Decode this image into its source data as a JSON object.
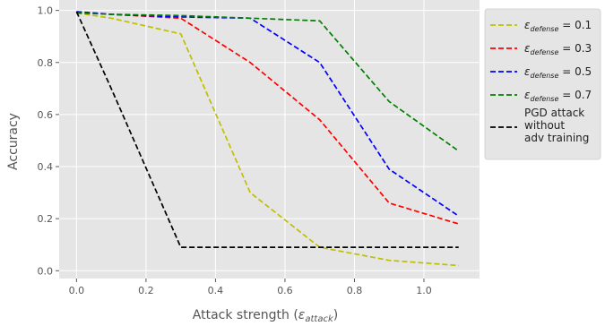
{
  "chart_data": {
    "type": "line",
    "title": "",
    "xlabel": "Attack strength (",
    "xlabel_symbol": "ε",
    "xlabel_subscript": "attack",
    "xlabel_suffix": ")",
    "ylabel": "Accuracy",
    "xlim": [
      -0.05,
      1.16
    ],
    "ylim": [
      -0.03,
      1.04
    ],
    "x_ticks": [
      0.0,
      0.2,
      0.4,
      0.6,
      0.8,
      1.0
    ],
    "x_tick_labels": [
      "0.0",
      "0.2",
      "0.4",
      "0.6",
      "0.8",
      "1.0"
    ],
    "y_ticks": [
      0.0,
      0.2,
      0.4,
      0.6,
      0.8,
      1.0
    ],
    "y_tick_labels": [
      "0.0",
      "0.2",
      "0.4",
      "0.6",
      "0.8",
      "1.0"
    ],
    "grid": true,
    "legend_position": "outside-right",
    "background_color": "#e5e5e5",
    "grid_color": "#ffffff",
    "x": [
      0.0,
      0.1,
      0.3,
      0.5,
      0.7,
      0.9,
      1.1
    ],
    "series": [
      {
        "legend_symbol": "ε",
        "legend_subscript": "defense",
        "legend_suffix": " = 0.1",
        "color": "#bfbf00",
        "values": [
          0.99,
          0.97,
          0.91,
          0.3,
          0.09,
          0.04,
          0.02
        ]
      },
      {
        "legend_symbol": "ε",
        "legend_subscript": "defense",
        "legend_suffix": " = 0.3",
        "color": "#ff0000",
        "values": [
          0.995,
          0.985,
          0.97,
          0.8,
          0.58,
          0.26,
          0.18
        ]
      },
      {
        "legend_symbol": "ε",
        "legend_subscript": "defense",
        "legend_suffix": " = 0.5",
        "color": "#0000ff",
        "values": [
          0.995,
          0.985,
          0.975,
          0.97,
          0.8,
          0.39,
          0.21
        ]
      },
      {
        "legend_symbol": "ε",
        "legend_subscript": "defense",
        "legend_suffix": " = 0.7",
        "color": "#008000",
        "values": [
          0.99,
          0.985,
          0.98,
          0.97,
          0.96,
          0.65,
          0.46
        ]
      },
      {
        "legend_lines": [
          "PGD attack",
          "without",
          "adv training"
        ],
        "color": "#000000",
        "values": [
          0.995,
          0.7,
          0.09,
          0.09,
          0.09,
          0.09,
          0.09
        ]
      }
    ]
  }
}
